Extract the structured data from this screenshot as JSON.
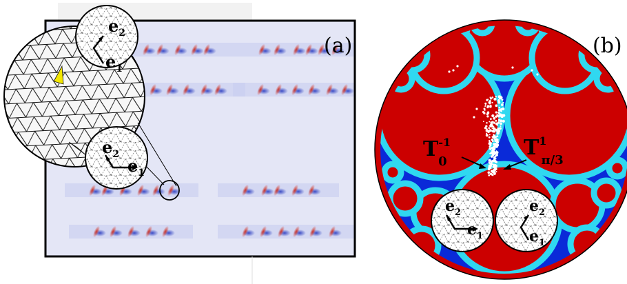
{
  "figure": {
    "panel_a": {
      "label": "(a)"
    },
    "panel_b": {
      "label": "(b)",
      "annotation_left": {
        "base": "T",
        "sup": "-1",
        "sub": "0"
      },
      "annotation_right": {
        "base": "T",
        "sup": "1",
        "sub": "π/3"
      }
    },
    "basis": {
      "e1": "e",
      "e1_sub": "1",
      "e2": "e",
      "e2_sub": "2"
    },
    "colors": {
      "frame": "#000000",
      "field_background": "#e4e6f6",
      "defect_red": "#d23020",
      "defect_blue": "#2a3cc0",
      "disk_red": "#cc0000",
      "disk_blue": "#0a2ad8",
      "disk_cyan": "#30d8f0",
      "mesh_highlight": "#f2e600",
      "points": "#ffffff"
    }
  }
}
